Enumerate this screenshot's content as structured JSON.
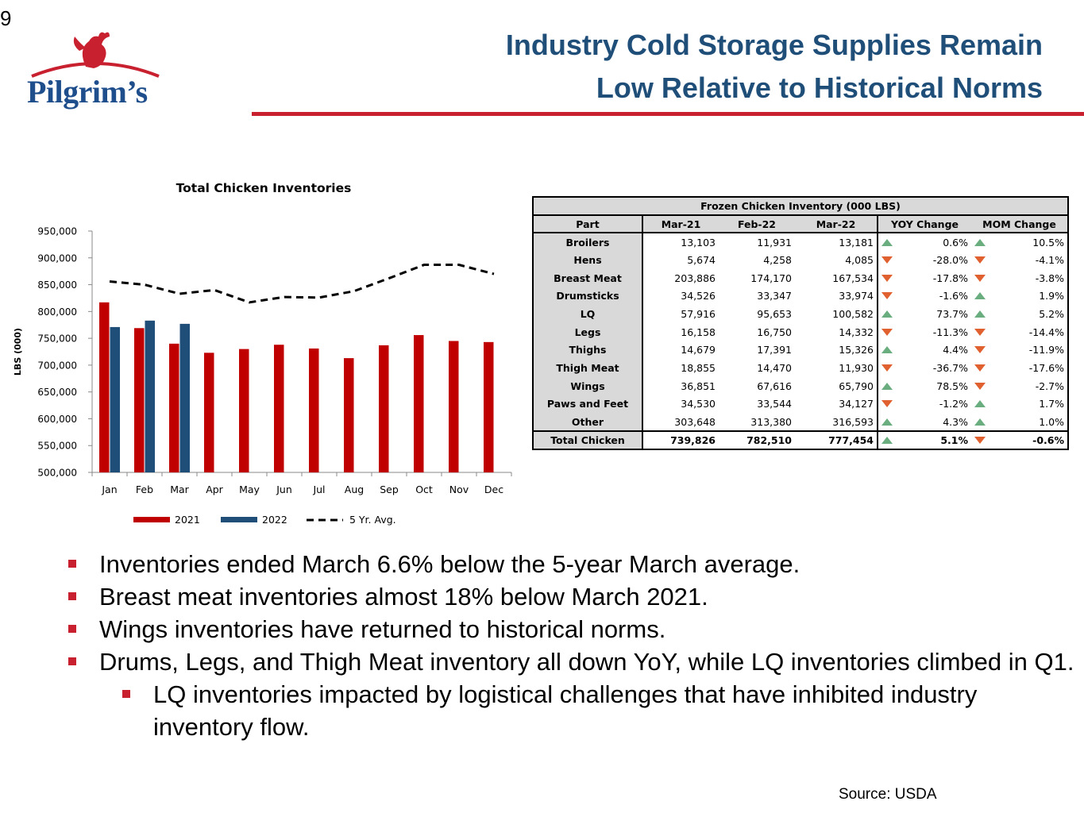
{
  "page": {
    "number": "9"
  },
  "logo": {
    "text": "Pilgrim’s",
    "accent_color": "#c8202f",
    "text_color": "#1f4e8c"
  },
  "header": {
    "title_line1": "Industry Cold Storage Supplies Remain",
    "title_line2": "Low Relative to Historical Norms",
    "title_color": "#1f4e79",
    "rule_color": "#c8202f"
  },
  "chart_data": {
    "type": "bar",
    "title": "Total Chicken Inventories",
    "ylabel": "LBS (000)",
    "xlabel": "",
    "ylim": [
      500000,
      950000
    ],
    "yticks": [
      "950,000",
      "900,000",
      "850,000",
      "800,000",
      "750,000",
      "700,000",
      "650,000",
      "600,000",
      "550,000",
      "500,000"
    ],
    "ytick_values": [
      950000,
      900000,
      850000,
      800000,
      750000,
      700000,
      650000,
      600000,
      550000,
      500000
    ],
    "categories": [
      "Jan",
      "Feb",
      "Mar",
      "Apr",
      "May",
      "Jun",
      "Jul",
      "Aug",
      "Sep",
      "Oct",
      "Nov",
      "Dec"
    ],
    "series": [
      {
        "name": "2021",
        "type": "bar",
        "color": "#c00000",
        "values": [
          817000,
          769000,
          740000,
          723000,
          730000,
          738000,
          731000,
          713000,
          737000,
          756000,
          745000,
          743000
        ]
      },
      {
        "name": "2022",
        "type": "bar",
        "color": "#1f4e79",
        "values": [
          771000,
          783000,
          777000,
          null,
          null,
          null,
          null,
          null,
          null,
          null,
          null,
          null
        ]
      },
      {
        "name": "5 Yr. Avg.",
        "type": "line",
        "style": "dashed",
        "color": "#000000",
        "values": [
          856000,
          850000,
          833000,
          840000,
          817000,
          827000,
          826000,
          838000,
          862000,
          887000,
          887000,
          870000
        ]
      }
    ],
    "grid": false,
    "legend": "bottom"
  },
  "table": {
    "caption": "Frozen Chicken Inventory (000 LBS)",
    "headers": [
      "Part",
      "Mar-21",
      "Feb-22",
      "Mar-22",
      "YOY Change",
      "MOM Change"
    ],
    "rows": [
      {
        "part": "Broilers",
        "mar21": "13,103",
        "feb22": "11,931",
        "mar22": "13,181",
        "yoy_dir": "up",
        "yoy": "0.6%",
        "mom_dir": "up",
        "mom": "10.5%"
      },
      {
        "part": "Hens",
        "mar21": "5,674",
        "feb22": "4,258",
        "mar22": "4,085",
        "yoy_dir": "down",
        "yoy": "-28.0%",
        "mom_dir": "down",
        "mom": "-4.1%"
      },
      {
        "part": "Breast Meat",
        "mar21": "203,886",
        "feb22": "174,170",
        "mar22": "167,534",
        "yoy_dir": "down",
        "yoy": "-17.8%",
        "mom_dir": "down",
        "mom": "-3.8%"
      },
      {
        "part": "Drumsticks",
        "mar21": "34,526",
        "feb22": "33,347",
        "mar22": "33,974",
        "yoy_dir": "down",
        "yoy": "-1.6%",
        "mom_dir": "up",
        "mom": "1.9%"
      },
      {
        "part": "LQ",
        "mar21": "57,916",
        "feb22": "95,653",
        "mar22": "100,582",
        "yoy_dir": "up",
        "yoy": "73.7%",
        "mom_dir": "up",
        "mom": "5.2%"
      },
      {
        "part": "Legs",
        "mar21": "16,158",
        "feb22": "16,750",
        "mar22": "14,332",
        "yoy_dir": "down",
        "yoy": "-11.3%",
        "mom_dir": "down",
        "mom": "-14.4%"
      },
      {
        "part": "Thighs",
        "mar21": "14,679",
        "feb22": "17,391",
        "mar22": "15,326",
        "yoy_dir": "up",
        "yoy": "4.4%",
        "mom_dir": "down",
        "mom": "-11.9%"
      },
      {
        "part": "Thigh Meat",
        "mar21": "18,855",
        "feb22": "14,470",
        "mar22": "11,930",
        "yoy_dir": "down",
        "yoy": "-36.7%",
        "mom_dir": "down",
        "mom": "-17.6%"
      },
      {
        "part": "Wings",
        "mar21": "36,851",
        "feb22": "67,616",
        "mar22": "65,790",
        "yoy_dir": "up",
        "yoy": "78.5%",
        "mom_dir": "down",
        "mom": "-2.7%"
      },
      {
        "part": "Paws and Feet",
        "mar21": "34,530",
        "feb22": "33,544",
        "mar22": "34,127",
        "yoy_dir": "down",
        "yoy": "-1.2%",
        "mom_dir": "up",
        "mom": "1.7%"
      },
      {
        "part": "Other",
        "mar21": "303,648",
        "feb22": "313,380",
        "mar22": "316,593",
        "yoy_dir": "up",
        "yoy": "4.3%",
        "mom_dir": "up",
        "mom": "1.0%"
      }
    ],
    "total": {
      "part": "Total Chicken",
      "mar21": "739,826",
      "feb22": "782,510",
      "mar22": "777,454",
      "yoy_dir": "up",
      "yoy": "5.1%",
      "mom_dir": "down",
      "mom": "-0.6%"
    },
    "up_color": "#6aae7f",
    "down_color": "#e06030"
  },
  "bullets": [
    {
      "text": "Inventories ended March 6.6% below the 5-year March average.",
      "level": 1
    },
    {
      "text": "Breast meat inventories almost 18% below March 2021.",
      "level": 1
    },
    {
      "text": "Wings inventories have returned to historical norms.",
      "level": 1
    },
    {
      "text": "Drums, Legs, and Thigh Meat inventory all down YoY, while LQ inventories climbed in Q1.",
      "level": 1
    },
    {
      "text": "LQ inventories impacted by logistical challenges that have inhibited industry inventory flow.",
      "level": 2
    }
  ],
  "source": "Source:  USDA"
}
